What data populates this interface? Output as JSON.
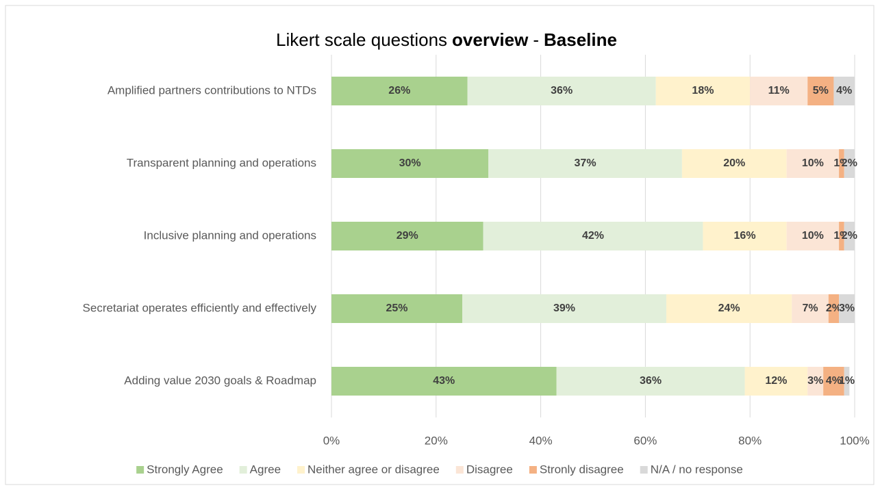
{
  "chart_data": {
    "type": "stacked_barh",
    "title_parts": [
      {
        "text": "Likert scale questions",
        "bold": false
      },
      {
        "text": "overview",
        "bold": true
      },
      {
        "text": "-",
        "bold": false
      },
      {
        "text": "Baseline",
        "bold": true
      }
    ],
    "categories": [
      "Amplified partners contributions to NTDs",
      "Transparent planning and operations",
      "Inclusive planning and operations",
      "Secretariat operates efficiently and effectively",
      "Adding value 2030 goals & Roadmap"
    ],
    "series": [
      {
        "name": "Strongly Agree",
        "color": "#a9d18e",
        "values": [
          26,
          30,
          29,
          25,
          43
        ],
        "value_labels": [
          "26%",
          "30%",
          "29%",
          "25%",
          "43%"
        ]
      },
      {
        "name": "Agree",
        "color": "#e2efda",
        "values": [
          36,
          37,
          42,
          39,
          36
        ],
        "value_labels": [
          "36%",
          "37%",
          "42%",
          "39%",
          "36%"
        ]
      },
      {
        "name": "Neither agree or disagree",
        "color": "#fff2cc",
        "values": [
          18,
          20,
          16,
          24,
          12
        ],
        "value_labels": [
          "18%",
          "20%",
          "16%",
          "24%",
          "12%"
        ]
      },
      {
        "name": "Disagree",
        "color": "#fbe5d6",
        "values": [
          11,
          10,
          10,
          7,
          3
        ],
        "value_labels": [
          "11%",
          "10%",
          "10%",
          "7%",
          "3%"
        ]
      },
      {
        "name": "Stronly disagree",
        "color": "#f4b183",
        "values": [
          5,
          1,
          1,
          2,
          4
        ],
        "value_labels": [
          "5%",
          "1%",
          "1%",
          "2%",
          "4%"
        ]
      },
      {
        "name": "N/A / no response",
        "color": "#d9d9d9",
        "values": [
          4,
          2,
          2,
          3,
          1
        ],
        "value_labels": [
          "4%",
          "2%",
          "2%",
          "3%",
          "1%"
        ]
      }
    ],
    "xlim": [
      0,
      100
    ],
    "xticks": [
      {
        "value": 0,
        "label": "0%"
      },
      {
        "value": 20,
        "label": "20%"
      },
      {
        "value": 40,
        "label": "40%"
      },
      {
        "value": 60,
        "label": "60%"
      },
      {
        "value": 80,
        "label": "80%"
      },
      {
        "value": 100,
        "label": "100%"
      }
    ],
    "grid": true,
    "legend": "bottom"
  }
}
